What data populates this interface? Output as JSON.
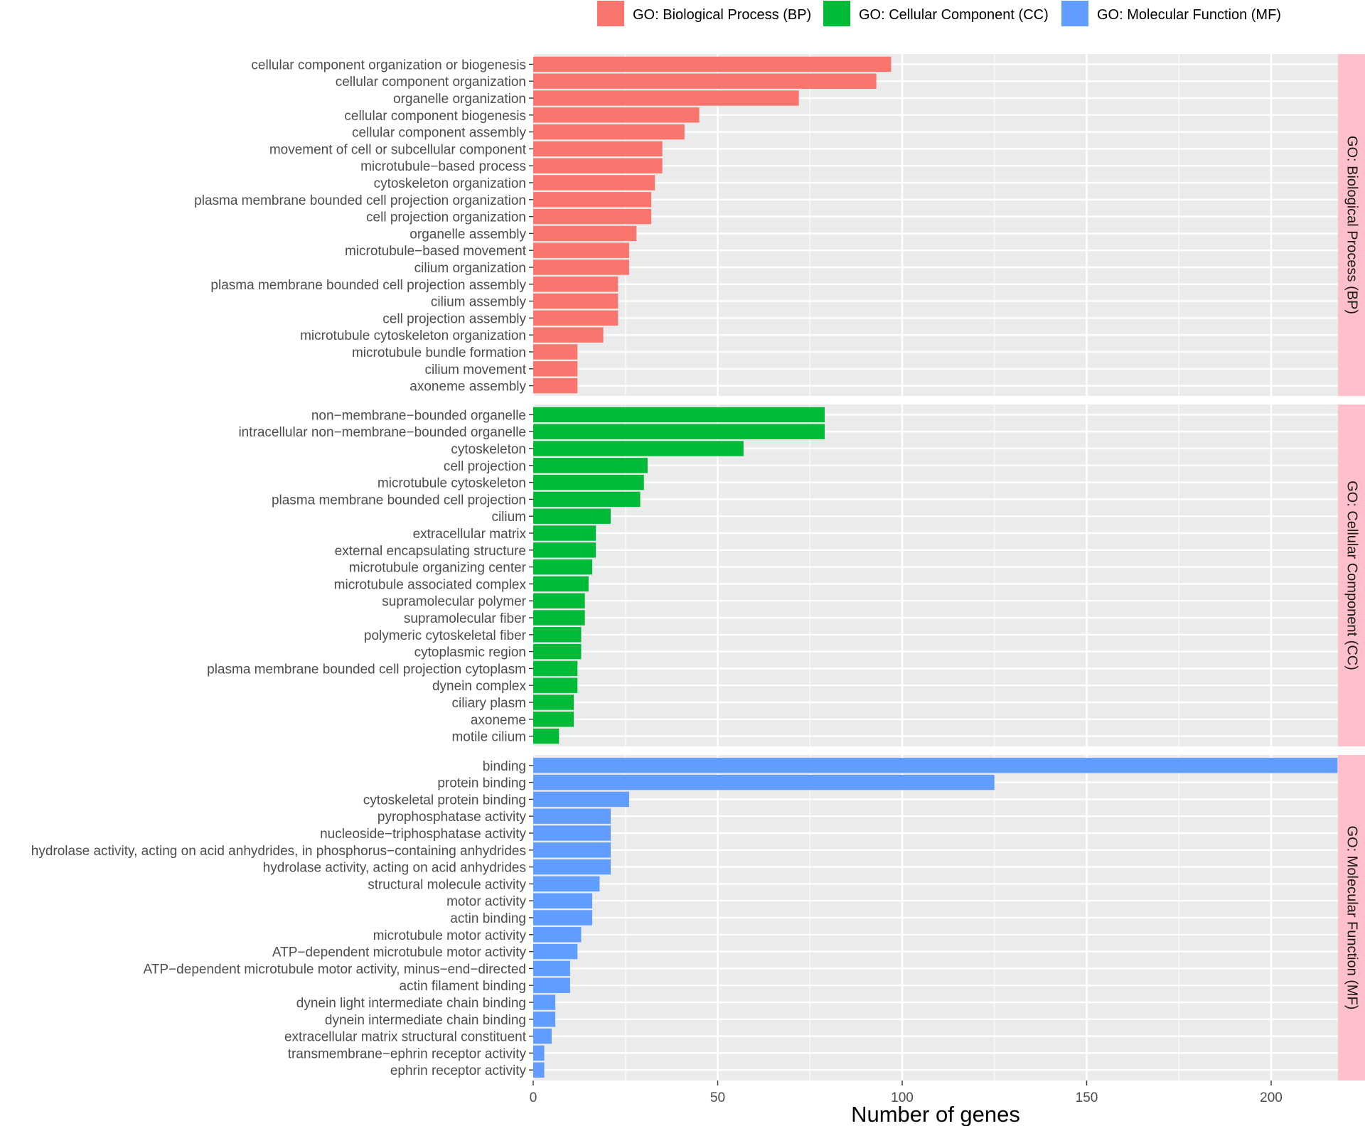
{
  "chart_data": {
    "type": "bar",
    "orientation": "horizontal",
    "xlabel": "Number of genes",
    "xlim": [
      0,
      218
    ],
    "xticks": [
      0,
      50,
      100,
      150,
      200
    ],
    "grid": true,
    "legend_position": "top",
    "legend": [
      {
        "label": "GO: Biological Process (BP)",
        "color": "#F8766D"
      },
      {
        "label": "GO: Cellular Component (CC)",
        "color": "#00BA38"
      },
      {
        "label": "GO: Molecular Function (MF)",
        "color": "#619CFF"
      }
    ],
    "panels": [
      {
        "strip": "GO: Biological Process (BP)",
        "color": "#F8766D",
        "categories": [
          "cellular component organization or biogenesis",
          "cellular component organization",
          "organelle organization",
          "cellular component biogenesis",
          "cellular component assembly",
          "movement of cell or subcellular component",
          "microtubule−based process",
          "cytoskeleton organization",
          "plasma membrane bounded cell projection organization",
          "cell projection organization",
          "organelle assembly",
          "microtubule−based movement",
          "cilium organization",
          "plasma membrane bounded cell projection assembly",
          "cilium assembly",
          "cell projection assembly",
          "microtubule cytoskeleton organization",
          "microtubule bundle formation",
          "cilium movement",
          "axoneme assembly"
        ],
        "values": [
          97,
          93,
          72,
          45,
          41,
          35,
          35,
          33,
          32,
          32,
          28,
          26,
          26,
          23,
          23,
          23,
          19,
          12,
          12,
          12
        ]
      },
      {
        "strip": "GO: Cellular Component (CC)",
        "color": "#00BA38",
        "categories": [
          "non−membrane−bounded organelle",
          "intracellular non−membrane−bounded organelle",
          "cytoskeleton",
          "cell projection",
          "microtubule cytoskeleton",
          "plasma membrane bounded cell projection",
          "cilium",
          "extracellular matrix",
          "external encapsulating structure",
          "microtubule organizing center",
          "microtubule associated complex",
          "supramolecular polymer",
          "supramolecular fiber",
          "polymeric cytoskeletal fiber",
          "cytoplasmic region",
          "plasma membrane bounded cell projection cytoplasm",
          "dynein complex",
          "ciliary plasm",
          "axoneme",
          "motile cilium"
        ],
        "values": [
          79,
          79,
          57,
          31,
          30,
          29,
          21,
          17,
          17,
          16,
          15,
          14,
          14,
          13,
          13,
          12,
          12,
          11,
          11,
          7
        ]
      },
      {
        "strip": "GO: Molecular Function (MF)",
        "color": "#619CFF",
        "categories": [
          "binding",
          "protein binding",
          "cytoskeletal protein binding",
          "pyrophosphatase activity",
          "nucleoside−triphosphatase activity",
          "hydrolase activity, acting on acid anhydrides, in phosphorus−containing anhydrides",
          "hydrolase activity, acting on acid anhydrides",
          "structural molecule activity",
          "motor activity",
          "actin binding",
          "microtubule motor activity",
          "ATP−dependent microtubule motor activity",
          "ATP−dependent microtubule motor activity, minus−end−directed",
          "actin filament binding",
          "dynein light intermediate chain binding",
          "dynein intermediate chain binding",
          "extracellular matrix structural constituent",
          "transmembrane−ephrin receptor activity",
          "ephrin receptor activity"
        ],
        "values": [
          218,
          125,
          26,
          21,
          21,
          21,
          21,
          18,
          16,
          16,
          13,
          12,
          10,
          10,
          6,
          6,
          5,
          3,
          3
        ]
      }
    ]
  }
}
